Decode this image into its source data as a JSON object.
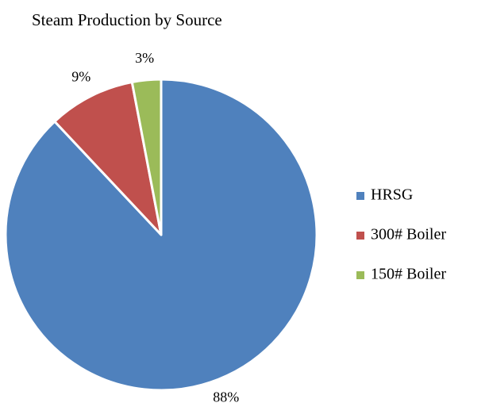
{
  "chart_data": {
    "type": "pie",
    "title": "Steam Production by Source",
    "categories": [
      "HRSG",
      "300# Boiler",
      "150# Boiler"
    ],
    "values": [
      88,
      9,
      3
    ],
    "value_labels": [
      "88%",
      "9%",
      "3%"
    ],
    "colors": [
      "#4f81bd",
      "#c0504d",
      "#9bbb59"
    ],
    "legend": "right"
  }
}
